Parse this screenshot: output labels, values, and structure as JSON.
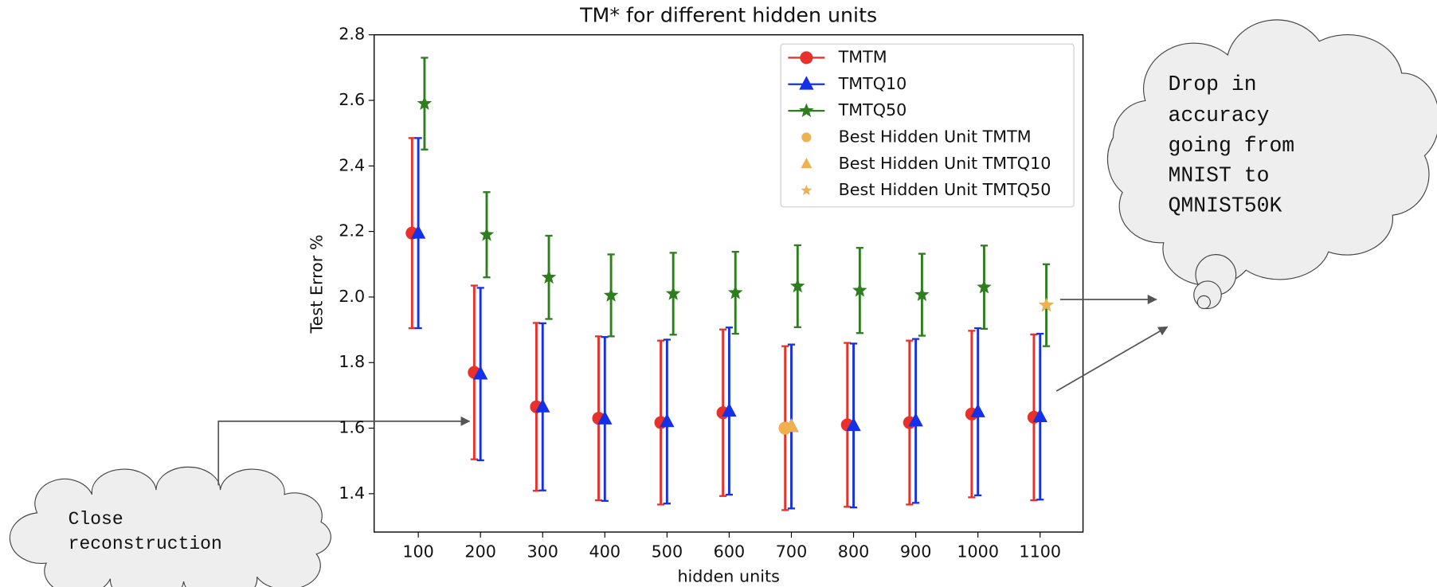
{
  "chart_data": {
    "type": "errorbar",
    "title": "TM* for different hidden units",
    "x_label": "hidden units",
    "y_label": "Test Error %",
    "xlim": [
      29,
      1169
    ],
    "ylim": [
      1.283,
      2.8
    ],
    "xticks": [
      100,
      200,
      300,
      400,
      500,
      600,
      700,
      800,
      900,
      1000,
      1100
    ],
    "yticks": [
      1.4,
      1.6,
      1.8,
      {
        "value": 2,
        "label": "2.0"
      },
      2.2,
      2.4,
      2.6,
      2.8
    ],
    "legend": "upper right",
    "series": [
      {
        "name": "TMTM",
        "color": "#e8312a",
        "marker": "circle",
        "x": [
          90,
          190,
          290,
          390,
          490,
          590,
          690,
          790,
          890,
          990,
          1090
        ],
        "values": [
          2.195,
          1.77,
          1.665,
          1.63,
          1.617,
          1.647,
          1.6,
          1.61,
          1.617,
          1.643,
          1.633
        ],
        "errors": [
          0.29,
          0.265,
          0.256,
          0.25,
          0.25,
          0.254,
          0.25,
          0.25,
          0.25,
          0.254,
          0.253
        ]
      },
      {
        "name": "TMTQ10",
        "color": "#1430e8",
        "marker": "triangle",
        "x": [
          100,
          200,
          300,
          400,
          500,
          600,
          700,
          800,
          900,
          1000,
          1100
        ],
        "values": [
          2.195,
          1.765,
          1.665,
          1.628,
          1.62,
          1.652,
          1.605,
          1.608,
          1.622,
          1.65,
          1.635
        ],
        "errors": [
          0.29,
          0.263,
          0.255,
          0.25,
          0.25,
          0.255,
          0.25,
          0.25,
          0.25,
          0.255,
          0.253
        ]
      },
      {
        "name": "TMTQ50",
        "color": "#2e7d1f",
        "marker": "star",
        "x": [
          110,
          210,
          310,
          410,
          510,
          610,
          710,
          810,
          910,
          1010,
          1110
        ],
        "values": [
          2.59,
          2.19,
          2.06,
          2.005,
          2.01,
          2.013,
          2.033,
          2.02,
          2.007,
          2.03,
          1.975
        ],
        "errors": [
          0.14,
          0.13,
          0.127,
          0.125,
          0.125,
          0.125,
          0.125,
          0.13,
          0.125,
          0.127,
          0.125
        ]
      },
      {
        "name": "Best Hidden Unit TMTM",
        "color": "#f0b050",
        "marker": "circle",
        "x": [
          690
        ],
        "values": [
          1.6
        ]
      },
      {
        "name": "Best Hidden Unit TMTQ10",
        "color": "#f0b050",
        "marker": "triangle",
        "x": [
          700
        ],
        "values": [
          1.605
        ]
      },
      {
        "name": "Best Hidden Unit TMTQ50",
        "color": "#f0b050",
        "marker": "star",
        "x": [
          1110
        ],
        "values": [
          1.975
        ]
      }
    ]
  },
  "annotations": [
    {
      "lines": [
        "Close",
        "reconstruction"
      ]
    },
    {
      "lines": [
        "Drop in",
        "accuracy",
        "going from",
        "MNIST to",
        "QMNIST50K"
      ]
    }
  ]
}
